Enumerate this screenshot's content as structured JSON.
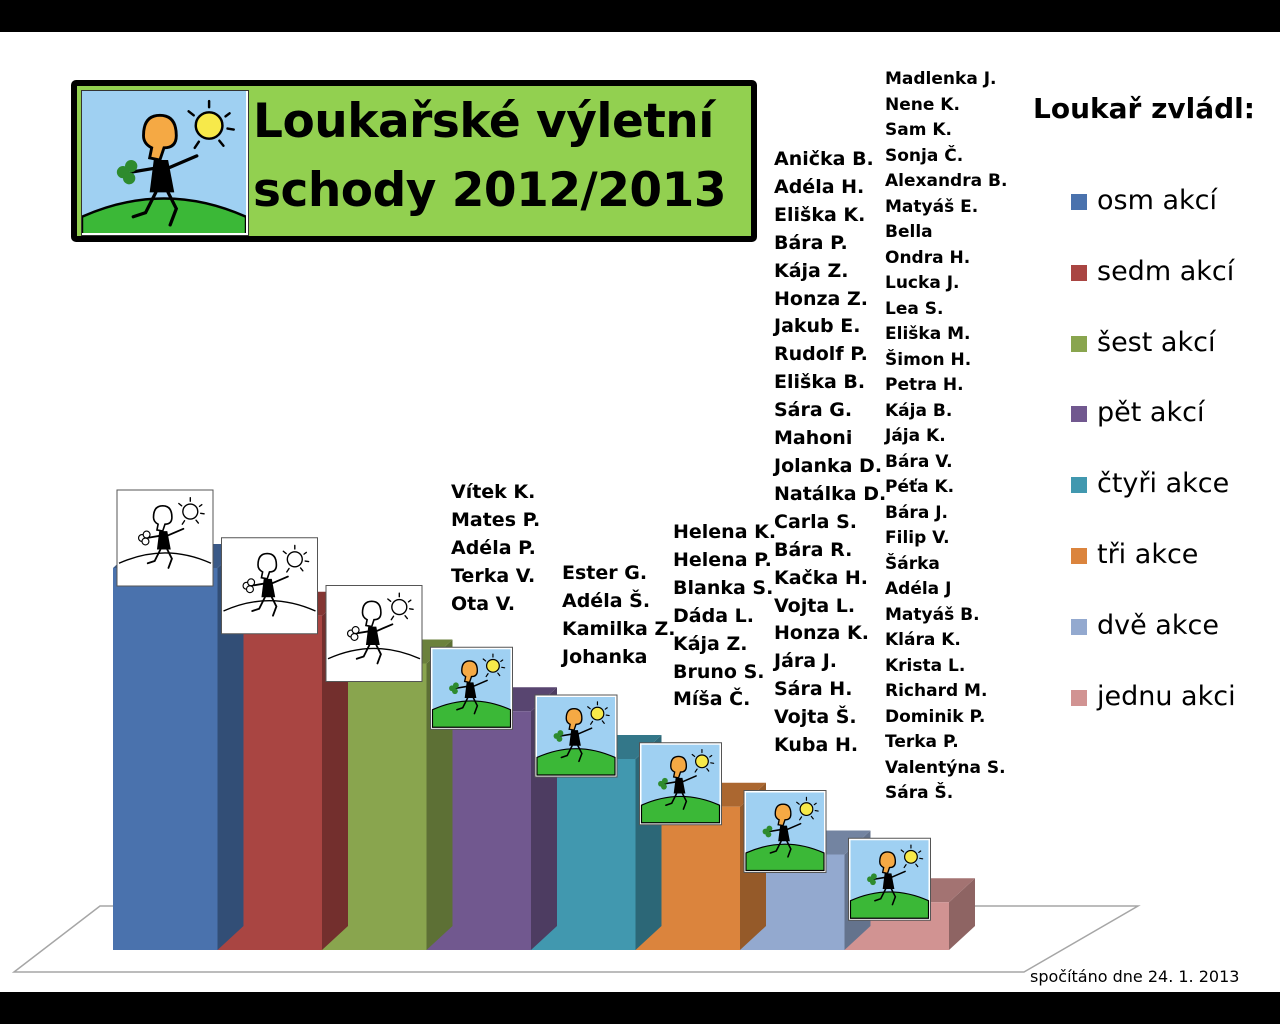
{
  "title": {
    "line1": "Loukařské výletní",
    "line2": "schody 2012/2013"
  },
  "legend_title": "Loukař zvládl:",
  "footer": "spočítáno dne 24. 1. 2013",
  "icons": {
    "bar_image": "running-figure-picture-icon",
    "title_logo": "running-figure-picture-icon"
  },
  "colors": {
    "osm": "#4a72ad",
    "sedm": "#a94542",
    "sest": "#89a54e",
    "pet": "#71588f",
    "ctyri": "#4198af",
    "tri": "#db843d",
    "dve": "#93a9cf",
    "jednu": "#d19392",
    "title_bg": "#92d050"
  },
  "chart_data": {
    "type": "bar",
    "categories": [
      "osm akcí",
      "sedm akcí",
      "šest akcí",
      "pět akcí",
      "čtyři akce",
      "tři akce",
      "dvě akce",
      "jednu akci"
    ],
    "values": [
      8,
      7,
      6,
      5,
      4,
      3,
      2,
      1
    ],
    "legend_position": "right",
    "grid": false,
    "name_lists": [
      {
        "category": "osm akcí",
        "names": []
      },
      {
        "category": "sedm akcí",
        "names": []
      },
      {
        "category": "šest akcí",
        "names": []
      },
      {
        "category": "pět akcí",
        "names": [
          "Vítek K.",
          "Mates P.",
          "Adéla P.",
          "Terka V.",
          "Ota V."
        ]
      },
      {
        "category": "čtyři akce",
        "names": [
          "Ester G.",
          "Adéla Š.",
          "Kamilka Z.",
          "Johanka"
        ]
      },
      {
        "category": "tři akce",
        "names": [
          "Helena K.",
          "Helena P.",
          "Blanka S.",
          "Dáda L.",
          "Kája Z.",
          "Bruno S.",
          "Míša Č."
        ]
      },
      {
        "category": "dvě akce",
        "names": [
          "Anička B.",
          "Adéla H.",
          "Eliška K.",
          "Bára P.",
          "Kája Z.",
          "Honza Z.",
          "Jakub E.",
          "Rudolf P.",
          "Eliška B.",
          "Sára G.",
          "Mahoni",
          "Jolanka D.",
          "Natálka D.",
          "Carla S.",
          "Bára R.",
          "Kačka H.",
          "Vojta L.",
          "Honza K.",
          "Jára J.",
          "Sára H.",
          "Vojta Š.",
          "Kuba H."
        ]
      },
      {
        "category": "jednu akci",
        "names": [
          "Madlenka J.",
          "Nene K.",
          "Sam K.",
          "Sonja Č.",
          "Alexandra B.",
          "Matyáš E.",
          "Bella",
          "Ondra H.",
          "Lucka J.",
          "Lea S.",
          "Eliška M.",
          "Šimon H.",
          "Petra H.",
          "Kája B.",
          "Jája K.",
          "Bára V.",
          "Péťa K.",
          "Bára J.",
          "Filip V.",
          "Šárka",
          "Adéla J",
          "Matyáš B.",
          "Klára K.",
          "Krista L.",
          "Richard M.",
          "Dominik P.",
          "Terka P.",
          "Valentýna S.",
          "Sára Š."
        ]
      }
    ]
  }
}
